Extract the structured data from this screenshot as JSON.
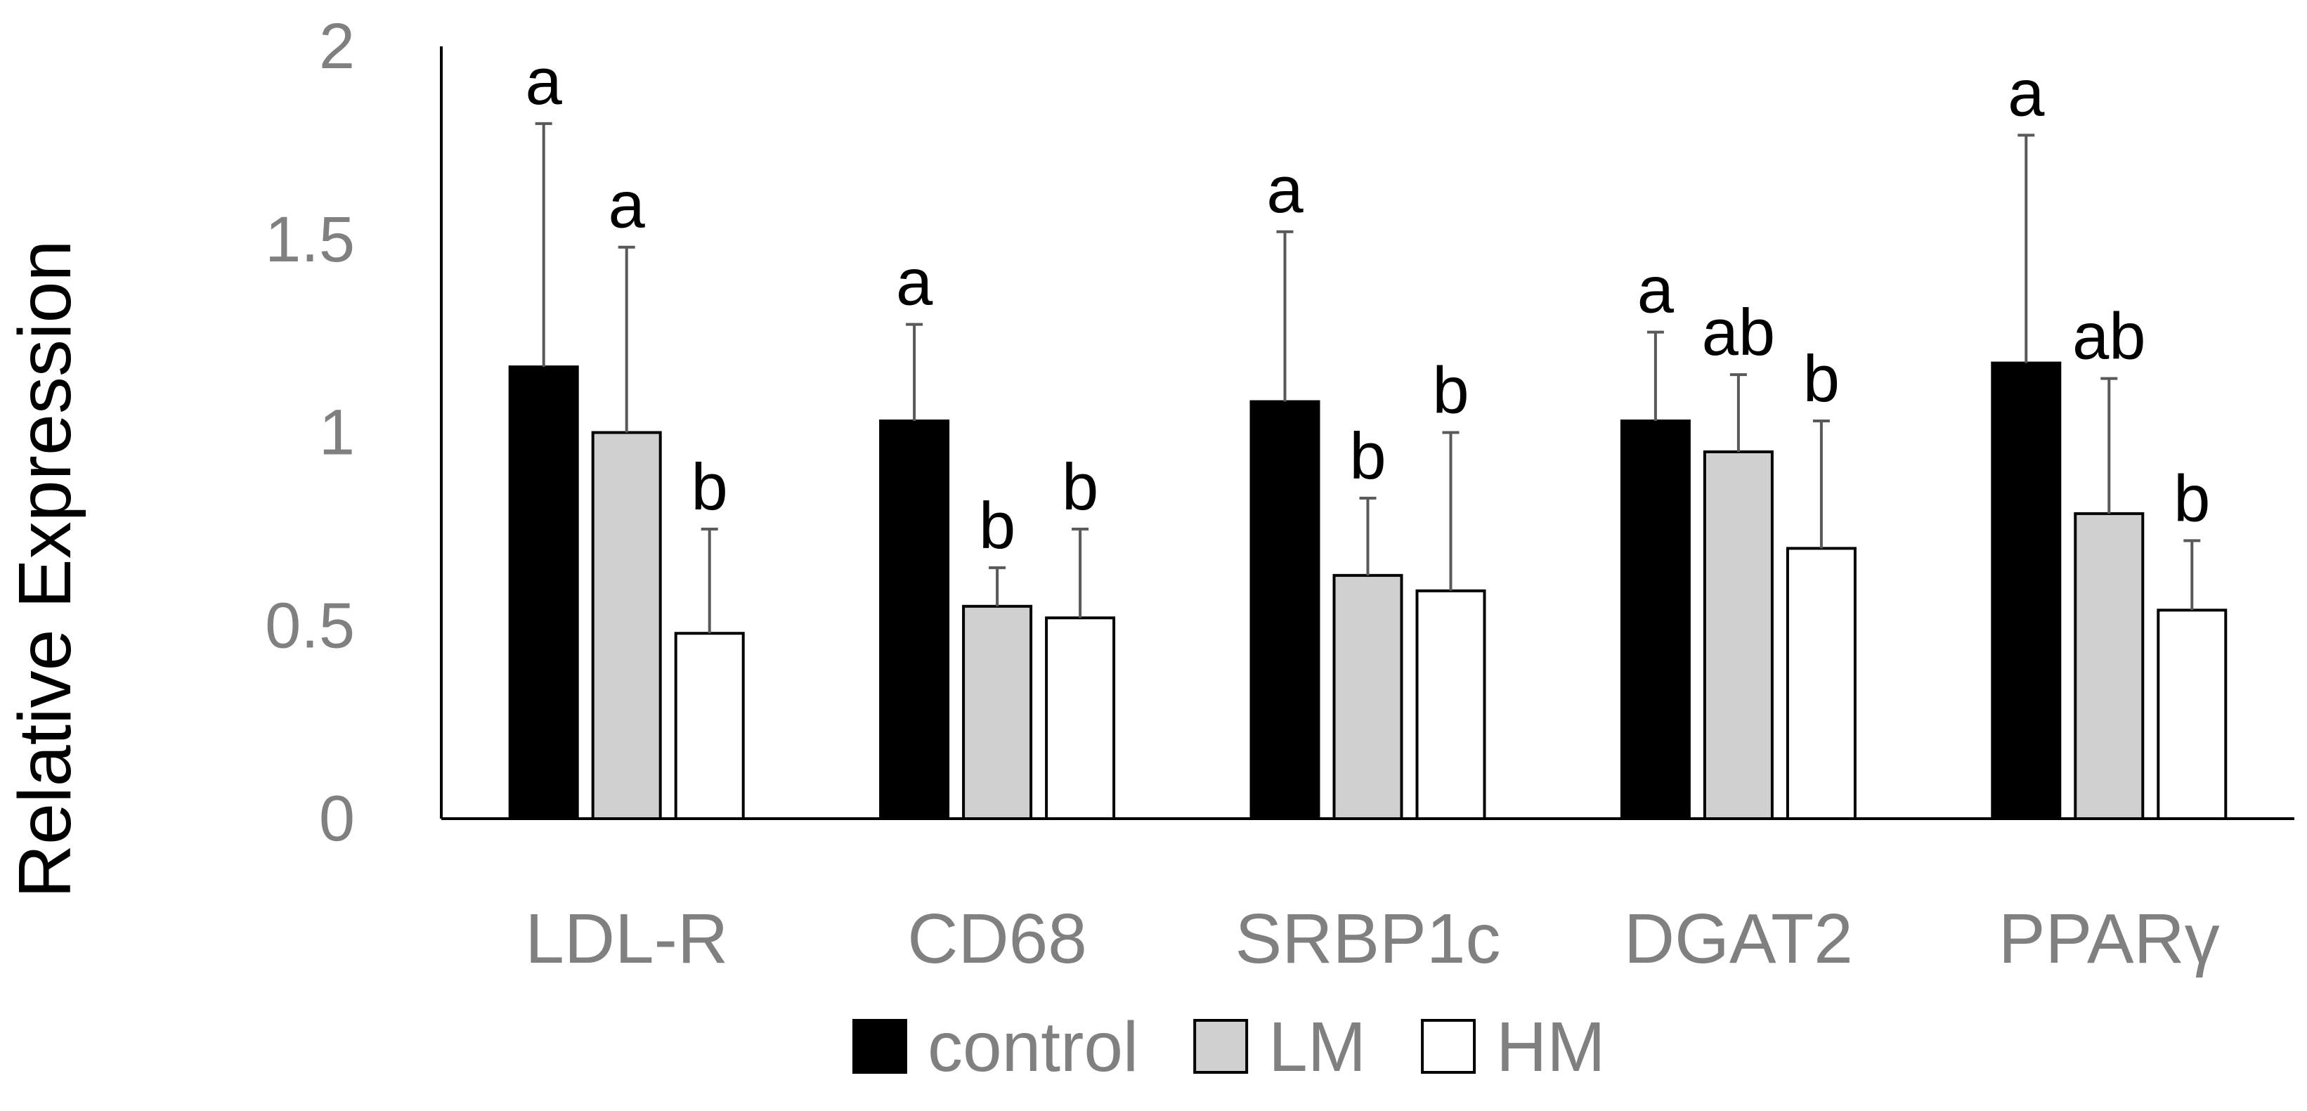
{
  "chart_data": {
    "type": "bar",
    "title": "",
    "xlabel": "",
    "ylabel": "Relative Expression",
    "ylim": [
      0,
      2
    ],
    "yticks": [
      0,
      0.5,
      1,
      1.5,
      2
    ],
    "ytick_labels": [
      "0",
      "0.5",
      "1",
      "1.5",
      "2"
    ],
    "categories": [
      "LDL-R",
      "CD68",
      "SRBP1c",
      "DGAT2",
      "PPARγ"
    ],
    "grid": false,
    "legend_position": "bottom",
    "series": [
      {
        "name": "control",
        "color": "#000000",
        "values": [
          1.17,
          1.03,
          1.08,
          1.03,
          1.18
        ],
        "errors": [
          0.63,
          0.25,
          0.44,
          0.23,
          0.59
        ],
        "significance": [
          "a",
          "a",
          "a",
          "a",
          "a"
        ]
      },
      {
        "name": "LM",
        "color": "#d0d0d0",
        "values": [
          1.0,
          0.55,
          0.63,
          0.95,
          0.79
        ],
        "errors": [
          0.48,
          0.1,
          0.2,
          0.2,
          0.35
        ],
        "significance": [
          "a",
          "b",
          "b",
          "ab",
          "ab"
        ]
      },
      {
        "name": "HM",
        "color": "#ffffff",
        "values": [
          0.48,
          0.52,
          0.59,
          0.7,
          0.54
        ],
        "errors": [
          0.27,
          0.23,
          0.41,
          0.33,
          0.18
        ],
        "significance": [
          "b",
          "b",
          "b",
          "b",
          "b"
        ]
      }
    ]
  }
}
